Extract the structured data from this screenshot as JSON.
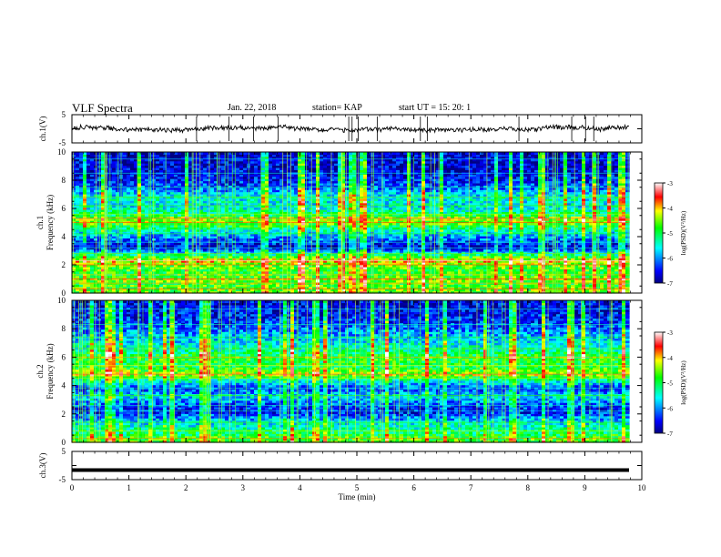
{
  "header": {
    "title": "VLF Spectra",
    "date": "Jan. 22, 2018",
    "station": "station= KAP",
    "start": "start  UT =   15: 20: 1"
  },
  "chart_data": [
    {
      "type": "line",
      "name": "ch1-waveform",
      "ylabel": "ch.1(V)",
      "ylim": [
        -5,
        5
      ],
      "yticks": [
        "5",
        "-5"
      ],
      "xlim": [
        0,
        10
      ],
      "note_values": "noisy waveform fluctuating roughly between -1.5 and 1.5 V around 0"
    },
    {
      "type": "heatmap",
      "name": "ch1-spectrogram",
      "ylabel": [
        "ch.1",
        "Frequency (kHz)"
      ],
      "ylim": [
        0,
        10
      ],
      "yticks": [
        "0",
        "2",
        "4",
        "6",
        "8",
        "10"
      ],
      "xlim": [
        0,
        10
      ],
      "colorbar": {
        "label": "log(PSD)(V²/Hz)",
        "ticks": [
          "-3",
          "-4",
          "-5",
          "-6",
          "-7"
        ],
        "range": [
          -7,
          -3
        ]
      },
      "bands_khz": [
        {
          "f": 0.3,
          "level": -4.6
        },
        {
          "f": 0.7,
          "level": -4.8
        },
        {
          "f": 1.0,
          "level": -4.4
        },
        {
          "f": 1.3,
          "level": -4.9
        },
        {
          "f": 2.0,
          "level": -4.6
        },
        {
          "f": 2.3,
          "level": -4.0
        },
        {
          "f": 2.8,
          "level": -5.4
        },
        {
          "f": 3.2,
          "level": -6.6
        },
        {
          "f": 3.6,
          "level": -6.4
        },
        {
          "f": 4.2,
          "level": -5.8
        },
        {
          "f": 5.0,
          "level": -4.6
        },
        {
          "f": 5.3,
          "level": -4.3
        },
        {
          "f": 5.6,
          "level": -5.2
        },
        {
          "f": 6.2,
          "level": -5.6
        },
        {
          "f": 6.8,
          "level": -5.5
        },
        {
          "f": 7.5,
          "level": -6.2
        },
        {
          "f": 8.5,
          "level": -6.6
        },
        {
          "f": 9.5,
          "level": -6.7
        }
      ]
    },
    {
      "type": "heatmap",
      "name": "ch2-spectrogram",
      "ylabel": [
        "ch.2",
        "Frequency (kHz)"
      ],
      "ylim": [
        0,
        10
      ],
      "yticks": [
        "0",
        "2",
        "4",
        "6",
        "8",
        "10"
      ],
      "xlim": [
        0,
        10
      ],
      "colorbar": {
        "label": "log(PSD)(V²/Hz)",
        "ticks": [
          "-3",
          "-4",
          "-5",
          "-6",
          "-7"
        ],
        "range": [
          -7,
          -3
        ]
      },
      "bands_khz": [
        {
          "f": 0.3,
          "level": -4.7
        },
        {
          "f": 0.8,
          "level": -5.2
        },
        {
          "f": 1.4,
          "level": -5.6
        },
        {
          "f": 2.2,
          "level": -6.5
        },
        {
          "f": 2.6,
          "level": -6.3
        },
        {
          "f": 3.3,
          "level": -5.6
        },
        {
          "f": 3.8,
          "level": -6.4
        },
        {
          "f": 4.5,
          "level": -5.2
        },
        {
          "f": 4.8,
          "level": -4.3
        },
        {
          "f": 5.4,
          "level": -5.0
        },
        {
          "f": 6.0,
          "level": -4.8
        },
        {
          "f": 6.6,
          "level": -5.4
        },
        {
          "f": 7.4,
          "level": -5.8
        },
        {
          "f": 8.3,
          "level": -6.3
        },
        {
          "f": 9.4,
          "level": -6.6
        }
      ]
    },
    {
      "type": "line",
      "name": "ch3-waveform",
      "ylabel": "ch.3(V)",
      "ylim": [
        -5,
        5
      ],
      "yticks": [
        "5",
        "-5"
      ],
      "xlim": [
        0,
        10
      ],
      "xlabel": "Time (min)",
      "xticks": [
        "0",
        "1",
        "2",
        "3",
        "4",
        "5",
        "6",
        "7",
        "8",
        "9",
        "10"
      ],
      "note_values": "flat constant line at about -1.6 V"
    }
  ]
}
